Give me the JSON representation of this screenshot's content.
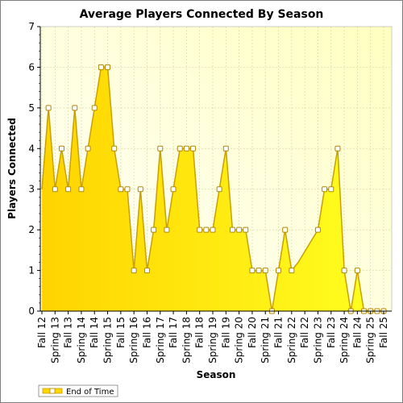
{
  "chart_data": {
    "type": "area",
    "title": "Average Players Connected By Season",
    "xlabel": "Season",
    "ylabel": "Players Connected",
    "ylim": [
      0,
      7
    ],
    "yticks": [
      0,
      1,
      2,
      3,
      4,
      5,
      6,
      7
    ],
    "grid": true,
    "legend_position": "bottom-left",
    "categories": [
      "Fall 12",
      "Spring 13",
      "Fall 13",
      "Spring 14",
      "Fall 14",
      "Spring 15",
      "Fall 15",
      "Spring 16",
      "Fall 16",
      "Spring 17",
      "Fall 17",
      "Spring 18",
      "Fall 18",
      "Spring 19",
      "Fall 19",
      "Spring 20",
      "Fall 20",
      "Spring 21",
      "Fall 21",
      "Spring 22",
      "Fall 22",
      "Spring 23",
      "Fall 23",
      "Spring 24",
      "Fall 24",
      "Spring 25",
      "Fall 25"
    ],
    "x": [
      0,
      0.5,
      1,
      1.5,
      2,
      2.5,
      3,
      3.5,
      4,
      4.5,
      5,
      5.5,
      6,
      6.5,
      7,
      7.5,
      8,
      8.5,
      9,
      9.5,
      10,
      10.5,
      11,
      11.5,
      12,
      12.5,
      13,
      13.5,
      14,
      14.5,
      15,
      15.5,
      16,
      16.5,
      17,
      17.5,
      18,
      18.5,
      19,
      19.5,
      21,
      21.5,
      22,
      22.5,
      23,
      23.5,
      24,
      24.5,
      25,
      25.5,
      26
    ],
    "series": [
      {
        "name": "End of Time",
        "color": "#ffd700",
        "line_color": "#c8a000",
        "values": [
          3,
          5,
          3,
          4,
          3,
          5,
          3,
          4,
          5,
          6,
          6,
          4,
          3,
          3,
          1,
          3,
          1,
          2,
          4,
          2,
          3,
          4,
          4,
          4,
          2,
          2,
          2,
          3,
          4,
          2,
          2,
          2,
          1,
          1,
          1,
          0,
          1,
          2,
          1,
          1.2,
          2,
          3,
          3,
          4,
          1,
          0,
          1,
          0,
          0,
          0,
          0
        ],
        "markers": [
          false,
          true,
          true,
          true,
          true,
          true,
          true,
          true,
          true,
          true,
          true,
          true,
          true,
          true,
          true,
          true,
          true,
          true,
          true,
          true,
          true,
          true,
          true,
          true,
          true,
          true,
          true,
          true,
          true,
          true,
          true,
          true,
          true,
          true,
          true,
          true,
          true,
          true,
          true,
          false,
          true,
          true,
          true,
          true,
          true,
          true,
          true,
          true,
          true,
          true,
          true
        ]
      }
    ]
  }
}
